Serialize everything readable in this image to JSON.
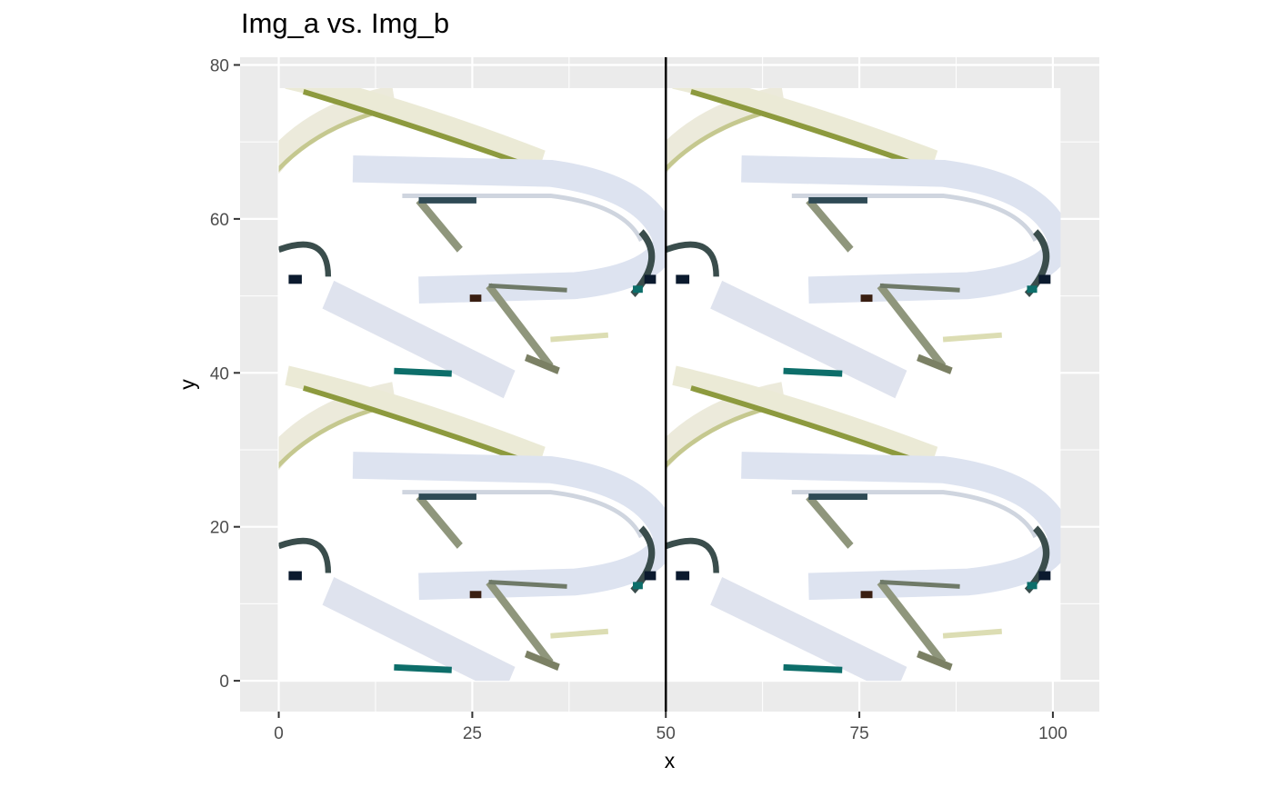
{
  "chart_data": {
    "type": "raster-image-comparison",
    "title": "Img_a vs. Img_b",
    "xlabel": "x",
    "ylabel": "y",
    "xlim": [
      -5,
      106
    ],
    "ylim": [
      -4,
      81
    ],
    "x_ticks": [
      0,
      25,
      50,
      75,
      100
    ],
    "y_ticks": [
      0,
      20,
      40,
      60,
      80
    ],
    "divider_x": 50,
    "grid": true,
    "panel_background": "#ebebeb",
    "panels": [
      {
        "name": "Img_a",
        "x_range": [
          0,
          50
        ],
        "y_range": [
          0,
          77
        ]
      },
      {
        "name": "Img_b",
        "x_range": [
          50,
          101
        ],
        "y_range": [
          0,
          77
        ]
      }
    ],
    "colors": {
      "outline": "#2f4a55",
      "highlight": "#0d6e6a",
      "dark": "#0b1a2e",
      "olive": "#8d9a3e",
      "pale_blue": "#dde3f0",
      "cream": "#eceadb",
      "image_bg": "#ffffff"
    }
  }
}
